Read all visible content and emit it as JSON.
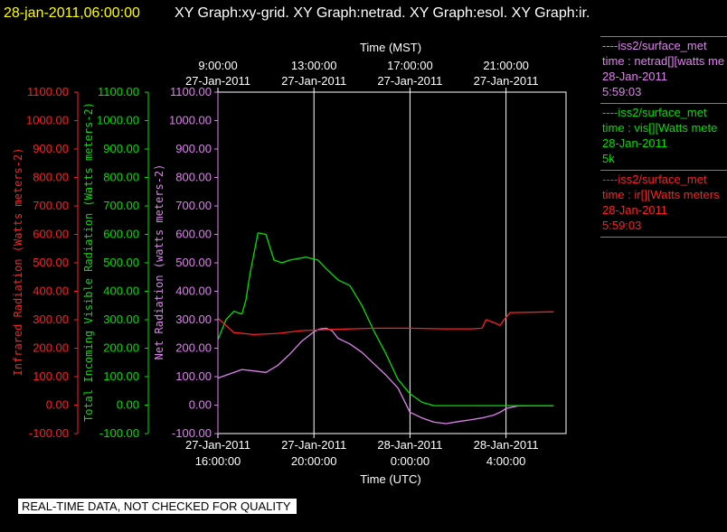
{
  "header": {
    "timestamp": "28-jan-2011,06:00:00",
    "graph_titles": [
      "XY Graph:xy-grid.",
      "XY Graph:netrad.",
      "XY Graph:esol.",
      "XY Graph:ir."
    ]
  },
  "note": "REAL-TIME DATA, NOT CHECKED FOR QUALITY",
  "colors": {
    "ir": "#ff2020",
    "vis": "#00e000",
    "net": "#e080f0",
    "frame": "#ffffff",
    "title": "#ffff00"
  },
  "chart_data": {
    "type": "line",
    "x_unit": "UTC",
    "xlim": [
      "2011-01-27T16:00:00",
      "2011-01-28T06:30:00"
    ],
    "ylim": [
      -100,
      1100
    ],
    "grid": true,
    "legend_position": "right",
    "y_axes": [
      {
        "id": "ir",
        "label": "Infrared Radiation (Watts meters-2)",
        "ticks": [
          "1100.00",
          "1000.00",
          "900.00",
          "800.00",
          "700.00",
          "600.00",
          "500.00",
          "400.00",
          "300.00",
          "200.00",
          "100.00",
          "0.00",
          "-100.00"
        ]
      },
      {
        "id": "vis",
        "label": "Total Incoming Visible Radiation (Watts meters-2)",
        "ticks": [
          "1100.00",
          "1000.00",
          "900.00",
          "800.00",
          "700.00",
          "600.00",
          "500.00",
          "400.00",
          "300.00",
          "200.00",
          "100.00",
          "0.00",
          "-100.00"
        ]
      },
      {
        "id": "net",
        "label": "Net Radiation (watts meters-2)",
        "ticks": [
          "1100.00",
          "1000.00",
          "900.00",
          "800.00",
          "700.00",
          "600.00",
          "500.00",
          "400.00",
          "300.00",
          "200.00",
          "100.00",
          "0.00",
          "-100.00"
        ]
      }
    ],
    "x_bottom": {
      "label": "Time (UTC)",
      "ticks": [
        {
          "t": "2011-01-27T16:00:00",
          "date": "27-Jan-2011",
          "time": "16:00:00"
        },
        {
          "t": "2011-01-27T20:00:00",
          "date": "27-Jan-2011",
          "time": "20:00:00"
        },
        {
          "t": "2011-01-28T00:00:00",
          "date": "28-Jan-2011",
          "time": "0:00:00"
        },
        {
          "t": "2011-01-28T04:00:00",
          "date": "28-Jan-2011",
          "time": "4:00:00"
        }
      ]
    },
    "x_top": {
      "label": "Time (MST)",
      "ticks": [
        {
          "t": "2011-01-27T16:00:00",
          "time": "9:00:00",
          "date": "27-Jan-2011"
        },
        {
          "t": "2011-01-27T20:00:00",
          "time": "13:00:00",
          "date": "27-Jan-2011"
        },
        {
          "t": "2011-01-28T00:00:00",
          "time": "17:00:00",
          "date": "27-Jan-2011"
        },
        {
          "t": "2011-01-28T04:00:00",
          "time": "21:00:00",
          "date": "27-Jan-2011"
        }
      ]
    },
    "series": [
      {
        "id": "net",
        "color": "#e080f0",
        "legend": [
          "----iss2/surface_met",
          "time : netrad[][watts me",
          "28-Jan-2011",
          "5:59:03"
        ],
        "points": [
          [
            "2011-01-27T16:00:00",
            95
          ],
          [
            "2011-01-27T16:30:00",
            110
          ],
          [
            "2011-01-27T17:00:00",
            125
          ],
          [
            "2011-01-27T17:30:00",
            120
          ],
          [
            "2011-01-27T18:00:00",
            115
          ],
          [
            "2011-01-27T18:30:00",
            140
          ],
          [
            "2011-01-27T19:00:00",
            180
          ],
          [
            "2011-01-27T19:30:00",
            225
          ],
          [
            "2011-01-27T20:00:00",
            258
          ],
          [
            "2011-01-27T20:15:00",
            268
          ],
          [
            "2011-01-27T20:30:00",
            270
          ],
          [
            "2011-01-27T20:45:00",
            262
          ],
          [
            "2011-01-27T21:00:00",
            235
          ],
          [
            "2011-01-27T21:30:00",
            215
          ],
          [
            "2011-01-27T22:00:00",
            185
          ],
          [
            "2011-01-27T22:30:00",
            145
          ],
          [
            "2011-01-27T23:00:00",
            105
          ],
          [
            "2011-01-27T23:30:00",
            60
          ],
          [
            "2011-01-28T00:00:00",
            -25
          ],
          [
            "2011-01-28T00:30:00",
            -45
          ],
          [
            "2011-01-28T01:00:00",
            -60
          ],
          [
            "2011-01-28T01:30:00",
            -65
          ],
          [
            "2011-01-28T02:00:00",
            -58
          ],
          [
            "2011-01-28T02:30:00",
            -52
          ],
          [
            "2011-01-28T03:00:00",
            -45
          ],
          [
            "2011-01-28T03:30:00",
            -35
          ],
          [
            "2011-01-28T03:45:00",
            -25
          ],
          [
            "2011-01-28T04:00:00",
            -12
          ],
          [
            "2011-01-28T04:30:00",
            -3
          ],
          [
            "2011-01-28T05:00:00",
            -2
          ],
          [
            "2011-01-28T05:59:00",
            -2
          ]
        ]
      },
      {
        "id": "vis",
        "color": "#00e000",
        "legend": [
          "----iss2/surface_met",
          "time : vis[][Watts mete",
          "28-Jan-2011",
          "5k"
        ],
        "points": [
          [
            "2011-01-27T16:00:00",
            230
          ],
          [
            "2011-01-27T16:20:00",
            300
          ],
          [
            "2011-01-27T16:40:00",
            330
          ],
          [
            "2011-01-27T17:00:00",
            320
          ],
          [
            "2011-01-27T17:10:00",
            370
          ],
          [
            "2011-01-27T17:20:00",
            460
          ],
          [
            "2011-01-27T17:40:00",
            605
          ],
          [
            "2011-01-27T18:00:00",
            600
          ],
          [
            "2011-01-27T18:20:00",
            510
          ],
          [
            "2011-01-27T18:40:00",
            500
          ],
          [
            "2011-01-27T19:00:00",
            510
          ],
          [
            "2011-01-27T19:40:00",
            520
          ],
          [
            "2011-01-27T20:10:00",
            510
          ],
          [
            "2011-01-27T20:30:00",
            480
          ],
          [
            "2011-01-27T21:00:00",
            440
          ],
          [
            "2011-01-27T21:30:00",
            420
          ],
          [
            "2011-01-27T22:00:00",
            350
          ],
          [
            "2011-01-27T22:30:00",
            260
          ],
          [
            "2011-01-27T23:00:00",
            180
          ],
          [
            "2011-01-27T23:30:00",
            90
          ],
          [
            "2011-01-28T00:00:00",
            40
          ],
          [
            "2011-01-28T00:30:00",
            10
          ],
          [
            "2011-01-28T01:00:00",
            -2
          ],
          [
            "2011-01-28T05:59:00",
            -2
          ]
        ]
      },
      {
        "id": "ir",
        "color": "#ff2020",
        "legend": [
          "----iss2/surface_met",
          "time : ir[][Watts meters",
          "28-Jan-2011",
          "5:59:03"
        ],
        "points": [
          [
            "2011-01-27T16:00:00",
            305
          ],
          [
            "2011-01-27T16:40:00",
            255
          ],
          [
            "2011-01-27T17:30:00",
            248
          ],
          [
            "2011-01-27T18:30:00",
            252
          ],
          [
            "2011-01-27T19:30:00",
            262
          ],
          [
            "2011-01-27T20:30:00",
            265
          ],
          [
            "2011-01-27T21:30:00",
            268
          ],
          [
            "2011-01-27T22:30:00",
            270
          ],
          [
            "2011-01-28T00:00:00",
            270
          ],
          [
            "2011-01-28T01:30:00",
            268
          ],
          [
            "2011-01-28T02:30:00",
            268
          ],
          [
            "2011-01-28T03:00:00",
            270
          ],
          [
            "2011-01-28T03:10:00",
            300
          ],
          [
            "2011-01-28T03:30:00",
            290
          ],
          [
            "2011-01-28T03:45:00",
            280
          ],
          [
            "2011-01-28T03:55:00",
            300
          ],
          [
            "2011-01-28T04:10:00",
            325
          ],
          [
            "2011-01-28T05:59:00",
            328
          ]
        ]
      }
    ]
  }
}
